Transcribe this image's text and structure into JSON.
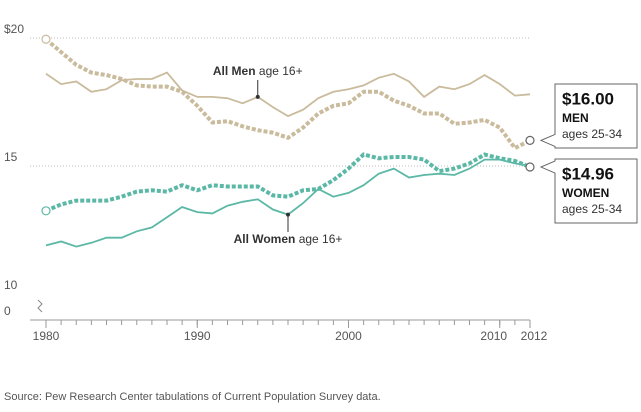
{
  "chart_data": {
    "type": "line",
    "x": [
      1980,
      1981,
      1982,
      1983,
      1984,
      1985,
      1986,
      1987,
      1988,
      1989,
      1990,
      1991,
      1992,
      1993,
      1994,
      1995,
      1996,
      1997,
      1998,
      1999,
      2000,
      2001,
      2002,
      2003,
      2004,
      2005,
      2006,
      2007,
      2008,
      2009,
      2010,
      2011,
      2012
    ],
    "xlim": [
      1980,
      2012
    ],
    "xticks": [
      1980,
      1990,
      2000,
      2010,
      2012
    ],
    "ylim": [
      10,
      20
    ],
    "axis_break": [
      0,
      10
    ],
    "yticks": [
      {
        "value": 20,
        "label": "$20"
      },
      15,
      10,
      0
    ],
    "grid": true,
    "series": [
      {
        "name": "All Men",
        "name_detail": "age 16+",
        "color": "#c9bb9c",
        "style": "solid",
        "values": [
          18.6,
          18.2,
          18.3,
          17.9,
          18.0,
          18.35,
          18.4,
          18.4,
          18.65,
          17.95,
          17.7,
          17.7,
          17.65,
          17.45,
          17.7,
          17.3,
          16.95,
          17.2,
          17.65,
          17.9,
          18.0,
          18.15,
          18.45,
          18.6,
          18.3,
          17.7,
          18.1,
          18.0,
          18.2,
          18.55,
          18.2,
          17.75,
          17.8
        ]
      },
      {
        "name": "MEN",
        "name_detail": "ages 25-34",
        "color": "#c9bb9c",
        "style": "dotted",
        "end_label": "$16.00",
        "values": [
          19.95,
          19.45,
          18.95,
          18.65,
          18.55,
          18.4,
          18.15,
          18.1,
          18.1,
          17.9,
          17.35,
          16.7,
          16.75,
          16.55,
          16.4,
          16.3,
          16.1,
          16.5,
          17.05,
          17.35,
          17.45,
          17.9,
          17.9,
          17.55,
          17.35,
          17.05,
          17.05,
          16.65,
          16.7,
          16.8,
          16.5,
          15.7,
          16.0
        ]
      },
      {
        "name": "All Women",
        "name_detail": "age 16+",
        "color": "#5cb8a6",
        "style": "solid",
        "values": [
          11.9,
          12.05,
          11.85,
          12.0,
          12.2,
          12.2,
          12.45,
          12.6,
          13.0,
          13.4,
          13.2,
          13.15,
          13.45,
          13.6,
          13.7,
          13.3,
          13.1,
          13.55,
          14.1,
          13.8,
          13.95,
          14.25,
          14.7,
          14.9,
          14.55,
          14.65,
          14.7,
          14.65,
          14.9,
          15.25,
          15.25,
          15.1,
          15.0
        ]
      },
      {
        "name": "WOMEN",
        "name_detail": "ages 25-34",
        "color": "#5cb8a6",
        "style": "dotted",
        "end_label": "$14.96",
        "values": [
          13.25,
          13.5,
          13.65,
          13.65,
          13.65,
          13.8,
          14.0,
          14.05,
          14.0,
          14.25,
          14.05,
          14.25,
          14.2,
          14.2,
          14.2,
          13.85,
          13.8,
          14.05,
          14.1,
          14.45,
          14.9,
          15.45,
          15.3,
          15.35,
          15.35,
          15.25,
          14.8,
          14.9,
          15.1,
          15.45,
          15.3,
          15.2,
          14.96
        ]
      }
    ],
    "source": "Source: Pew Research Center tabulations of Current Population Survey data."
  }
}
